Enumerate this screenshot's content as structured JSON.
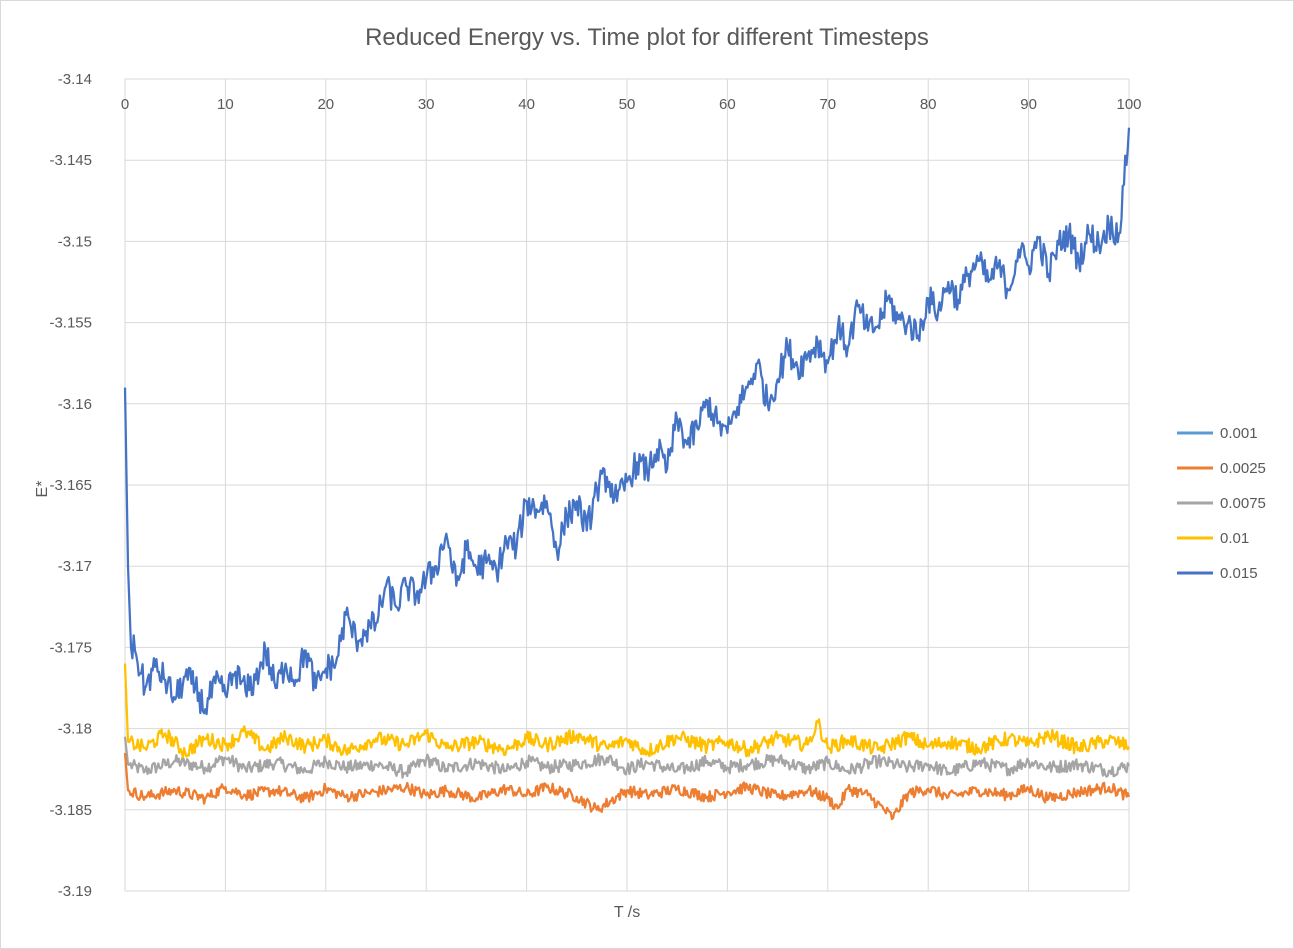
{
  "chart_data": {
    "type": "line",
    "title": "Reduced Energy vs. Time plot for different Timesteps",
    "xlabel": "T /s",
    "ylabel": "E*",
    "xlim": [
      0,
      100
    ],
    "ylim": [
      -3.19,
      -3.14
    ],
    "x_ticks": [
      0,
      10,
      20,
      30,
      40,
      50,
      60,
      70,
      80,
      90,
      100
    ],
    "y_ticks": [
      -3.14,
      -3.145,
      -3.15,
      -3.155,
      -3.16,
      -3.165,
      -3.17,
      -3.175,
      -3.18,
      -3.185,
      -3.19
    ],
    "x_tick_labels": [
      "0",
      "10",
      "20",
      "30",
      "40",
      "50",
      "60",
      "70",
      "80",
      "90",
      "100"
    ],
    "y_tick_labels": [
      "-3.14",
      "-3.145",
      "-3.15",
      "-3.155",
      "-3.16",
      "-3.165",
      "-3.17",
      "-3.175",
      "-3.18",
      "-3.185",
      "-3.19"
    ],
    "x_axis_position": "top",
    "grid": true,
    "legend_position": "right",
    "series": [
      {
        "name": "0.001",
        "color": "#5b9bd5",
        "x": [
          0
        ],
        "y": [
          -3.1822
        ]
      },
      {
        "name": "0.0025",
        "color": "#ed7d31",
        "x": [
          0,
          0.3,
          2,
          5,
          8,
          10,
          12,
          15,
          18,
          20,
          22,
          25,
          28,
          30,
          32,
          35,
          38,
          40,
          42,
          45,
          47,
          50,
          52,
          55,
          58,
          60,
          62,
          65,
          68,
          70,
          71,
          72,
          74,
          76.5,
          78,
          80,
          82,
          85,
          88,
          90,
          92,
          95,
          98,
          100
        ],
        "y": [
          -3.1815,
          -3.1838,
          -3.1842,
          -3.1838,
          -3.1843,
          -3.1836,
          -3.1841,
          -3.1838,
          -3.1843,
          -3.1837,
          -3.1842,
          -3.1839,
          -3.1836,
          -3.1841,
          -3.1838,
          -3.1843,
          -3.1837,
          -3.1841,
          -3.1836,
          -3.1842,
          -3.185,
          -3.1838,
          -3.1841,
          -3.1837,
          -3.1842,
          -3.1839,
          -3.1836,
          -3.1842,
          -3.1838,
          -3.1843,
          -3.1849,
          -3.1837,
          -3.1841,
          -3.1855,
          -3.184,
          -3.1837,
          -3.1842,
          -3.1838,
          -3.1841,
          -3.1837,
          -3.1843,
          -3.1839,
          -3.1836,
          -3.1842
        ]
      },
      {
        "name": "0.0075",
        "color": "#a5a5a5",
        "x": [
          0,
          0.3,
          2,
          5,
          8,
          10,
          12,
          15,
          18,
          20,
          22,
          25,
          28,
          30,
          32,
          35,
          38,
          40,
          42,
          45,
          48,
          50,
          52,
          55,
          58,
          60,
          62,
          65,
          68,
          70,
          72,
          75,
          78,
          80,
          82,
          85,
          88,
          90,
          92,
          95,
          98,
          100
        ],
        "y": [
          -3.1805,
          -3.1822,
          -3.1826,
          -3.182,
          -3.1824,
          -3.1818,
          -3.1825,
          -3.1821,
          -3.1826,
          -3.182,
          -3.1824,
          -3.1822,
          -3.1827,
          -3.1819,
          -3.1825,
          -3.1821,
          -3.1826,
          -3.182,
          -3.1824,
          -3.1822,
          -3.1818,
          -3.1825,
          -3.1821,
          -3.1826,
          -3.182,
          -3.1824,
          -3.1822,
          -3.1819,
          -3.1825,
          -3.1821,
          -3.1826,
          -3.182,
          -3.1824,
          -3.1822,
          -3.1827,
          -3.1821,
          -3.1825,
          -3.182,
          -3.1824,
          -3.1822,
          -3.1826,
          -3.1823
        ]
      },
      {
        "name": "0.01",
        "color": "#ffc000",
        "x": [
          0,
          0.3,
          2,
          4,
          6,
          8,
          10,
          12,
          14,
          16,
          18,
          20,
          22,
          25,
          28,
          30,
          32,
          35,
          38,
          40,
          42,
          45,
          48,
          50,
          52,
          55,
          58,
          60,
          62,
          65,
          68,
          69,
          70,
          72,
          75,
          78,
          80,
          82,
          85,
          88,
          90,
          92,
          95,
          98,
          100
        ],
        "y": [
          -3.176,
          -3.1808,
          -3.1812,
          -3.1803,
          -3.1815,
          -3.1806,
          -3.181,
          -3.1802,
          -3.1813,
          -3.1805,
          -3.1811,
          -3.1807,
          -3.1814,
          -3.1806,
          -3.181,
          -3.1803,
          -3.1812,
          -3.1808,
          -3.1813,
          -3.1806,
          -3.181,
          -3.1804,
          -3.1812,
          -3.1807,
          -3.1814,
          -3.1805,
          -3.1811,
          -3.1808,
          -3.1813,
          -3.1806,
          -3.181,
          -3.1796,
          -3.1812,
          -3.1807,
          -3.1813,
          -3.1805,
          -3.1811,
          -3.1808,
          -3.1812,
          -3.1806,
          -3.181,
          -3.1804,
          -3.1812,
          -3.1807,
          -3.1811
        ]
      },
      {
        "name": "0.015",
        "color": "#4472c4",
        "x": [
          0,
          0.3,
          0.6,
          1,
          2,
          3,
          4,
          5,
          6,
          7,
          8,
          9,
          10,
          11,
          12,
          13,
          14,
          15,
          16,
          17,
          18,
          19,
          20,
          21,
          22,
          23,
          24,
          25,
          26,
          27,
          28,
          29,
          30,
          31,
          32,
          33,
          34,
          35,
          36,
          37,
          38,
          39,
          40,
          41,
          42,
          43,
          44,
          45,
          46,
          47,
          48,
          49,
          50,
          51,
          52,
          53,
          54,
          55,
          56,
          57,
          58,
          59,
          60,
          61,
          62,
          63,
          64,
          65,
          66,
          67,
          68,
          69,
          70,
          71,
          72,
          73,
          74,
          75,
          76,
          77,
          78,
          79,
          80,
          81,
          82,
          83,
          84,
          85,
          86,
          87,
          88,
          89,
          90,
          91,
          92,
          93,
          94,
          95,
          96,
          97,
          98,
          99,
          99.5,
          100
        ],
        "y": [
          -3.159,
          -3.17,
          -3.175,
          -3.1752,
          -3.1775,
          -3.1762,
          -3.177,
          -3.1782,
          -3.1768,
          -3.1775,
          -3.1788,
          -3.1772,
          -3.1779,
          -3.1765,
          -3.1777,
          -3.177,
          -3.1752,
          -3.1775,
          -3.176,
          -3.177,
          -3.1752,
          -3.1775,
          -3.1763,
          -3.176,
          -3.173,
          -3.1745,
          -3.174,
          -3.1735,
          -3.1712,
          -3.1725,
          -3.1712,
          -3.1718,
          -3.1708,
          -3.17,
          -3.168,
          -3.1712,
          -3.169,
          -3.1701,
          -3.1698,
          -3.1703,
          -3.1685,
          -3.1688,
          -3.166,
          -3.1665,
          -3.166,
          -3.169,
          -3.167,
          -3.166,
          -3.1678,
          -3.1652,
          -3.1645,
          -3.166,
          -3.1648,
          -3.1636,
          -3.1642,
          -3.1628,
          -3.164,
          -3.161,
          -3.1625,
          -3.1615,
          -3.1598,
          -3.1612,
          -3.1618,
          -3.1602,
          -3.159,
          -3.1575,
          -3.16,
          -3.1585,
          -3.1565,
          -3.1578,
          -3.157,
          -3.1562,
          -3.1575,
          -3.1553,
          -3.1565,
          -3.154,
          -3.1555,
          -3.1552,
          -3.1535,
          -3.1548,
          -3.155,
          -3.1558,
          -3.1535,
          -3.1543,
          -3.1525,
          -3.1536,
          -3.152,
          -3.1512,
          -3.1525,
          -3.1515,
          -3.153,
          -3.1505,
          -3.1515,
          -3.1498,
          -3.152,
          -3.1502,
          -3.1495,
          -3.1512,
          -3.1495,
          -3.1502,
          -3.149,
          -3.1495,
          -3.1465,
          -3.143
        ]
      }
    ]
  }
}
